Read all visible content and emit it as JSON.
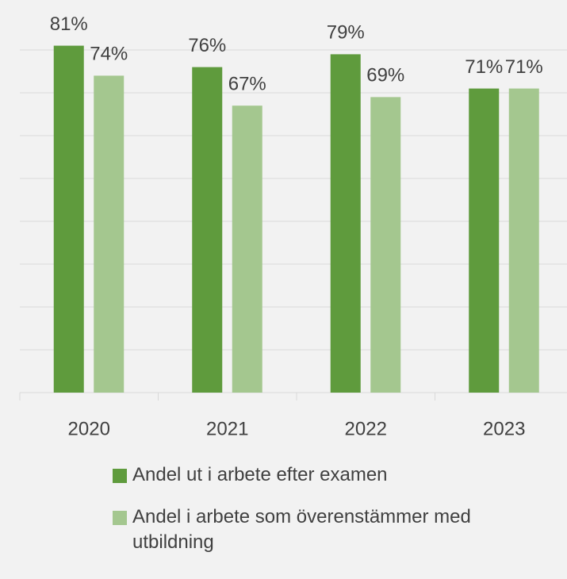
{
  "chart_data": {
    "type": "bar",
    "categories": [
      "2020",
      "2021",
      "2022",
      "2023"
    ],
    "series": [
      {
        "name": "Andel ut i arbete efter examen",
        "color": "#5f9b3d",
        "values": [
          81,
          76,
          79,
          71
        ],
        "value_labels": [
          "81%",
          "76%",
          "79%",
          "71%"
        ]
      },
      {
        "name": "Andel i arbete som överenstämmer med utbildning",
        "color": "#a4c78f",
        "values": [
          74,
          67,
          69,
          71
        ],
        "value_labels": [
          "74%",
          "67%",
          "69%",
          "71%"
        ]
      }
    ],
    "ylim": [
      0,
      90
    ],
    "yticks": [
      0,
      10,
      20,
      30,
      40,
      50,
      60,
      70,
      80
    ],
    "grid": true
  }
}
